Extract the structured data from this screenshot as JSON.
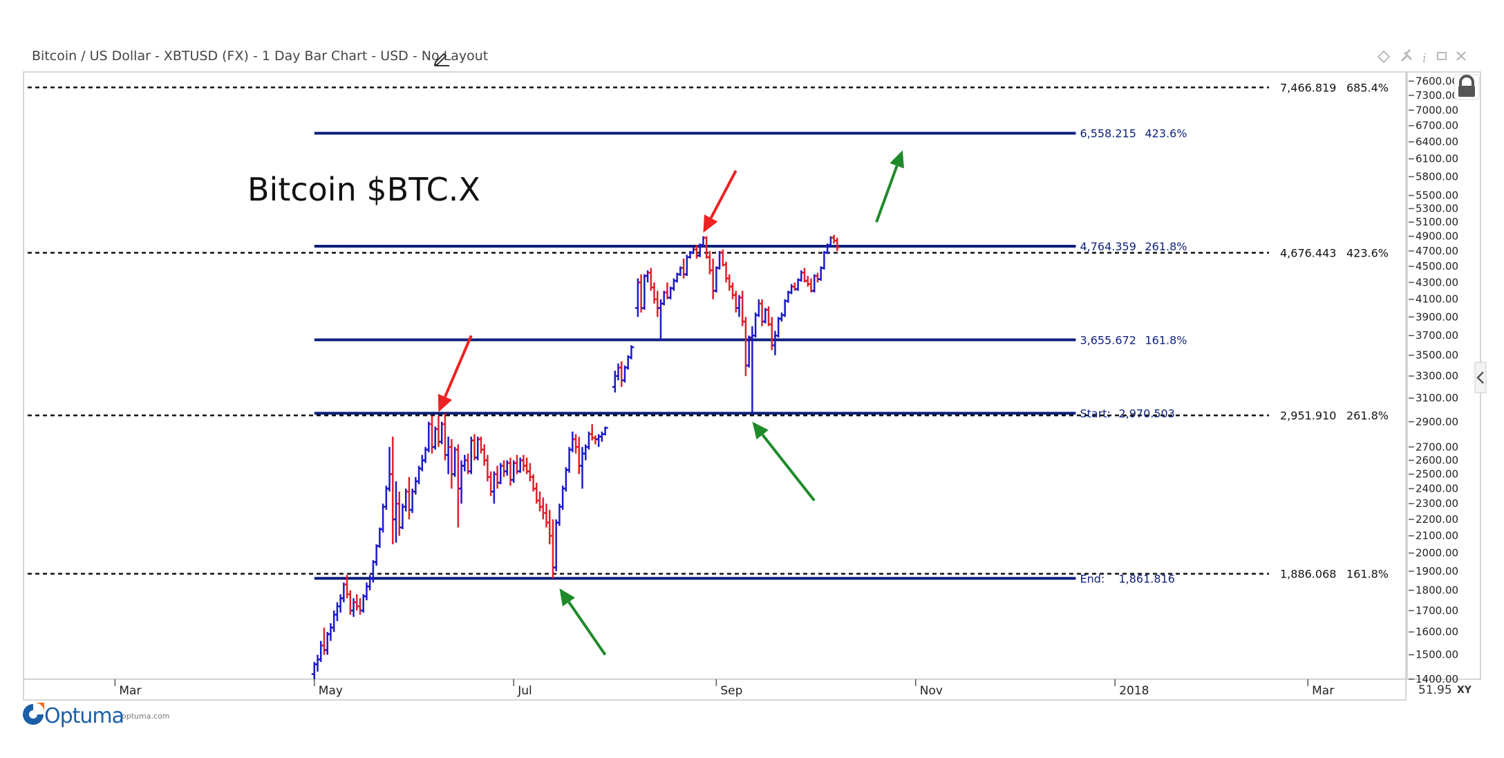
{
  "header": {
    "title": "Bitcoin / US Dollar - XBTUSD (FX) - 1 Day Bar Chart - USD - No Layout"
  },
  "brand": {
    "name": "Optuma",
    "url": "optuma.com"
  },
  "corner": {
    "value": "51.95",
    "xy": "XY"
  },
  "colors": {
    "up_bar": "#1a1acc",
    "down_bar": "#e0202a",
    "fib_line": "#0d1f7a",
    "dotted_line": "#111111",
    "arrow_red": "#ee2222",
    "arrow_green": "#1f8a2a"
  },
  "chart_data": {
    "type": "bar",
    "annotation_title": "Bitcoin $BTC.X",
    "x_axis": {
      "tick_labels": [
        "Mar",
        "May",
        "Jul",
        "Sep",
        "Nov",
        "2018",
        "Mar"
      ],
      "tick_dates": [
        "2017-03-01",
        "2017-05-01",
        "2017-07-01",
        "2017-09-01",
        "2017-11-01",
        "2018-01-01",
        "2018-03-01"
      ],
      "range": [
        "2017-02-01",
        "2018-03-31"
      ]
    },
    "y_axis": {
      "scale": "log",
      "range": [
        1400,
        7800
      ],
      "tick_labels": [
        "7600.00",
        "7300.00",
        "7000.00",
        "6700.00",
        "6400.00",
        "6100.00",
        "5800.00",
        "5500.00",
        "5300.00",
        "5100.00",
        "4900.00",
        "4700.00",
        "4500.00",
        "4300.00",
        "4100.00",
        "3900.00",
        "3700.00",
        "3500.00",
        "3300.00",
        "3100.00",
        "2900.00",
        "2700.00",
        "2600.00",
        "2500.00",
        "2400.00",
        "2300.00",
        "2200.00",
        "2100.00",
        "2000.00",
        "1900.00",
        "1800.00",
        "1700.00",
        "1600.00",
        "1500.00",
        "1400.00"
      ]
    },
    "dotted_levels": [
      {
        "value": 7466.819,
        "label": "7,466.819",
        "pct": "685.4%"
      },
      {
        "value": 4676.443,
        "label": "4,676.443",
        "pct": "423.6%"
      },
      {
        "value": 2951.91,
        "label": "2,951.910",
        "pct": "261.8%"
      },
      {
        "value": 1886.068,
        "label": "1,886.068",
        "pct": "161.8%"
      }
    ],
    "fib_levels": [
      {
        "value": 6558.215,
        "label": "6,558.215",
        "pct": "423.6%"
      },
      {
        "value": 4764.359,
        "label": "4,764.359",
        "pct": "261.8%"
      },
      {
        "value": 3655.672,
        "label": "3,655.672",
        "pct": "161.8%"
      },
      {
        "value": 2970.503,
        "label": "2,970.503",
        "pct": "Start:"
      },
      {
        "value": 1861.816,
        "label": "1,861.816",
        "pct": "End:"
      }
    ],
    "fib_range": [
      "2017-05-01",
      "2017-12-20"
    ],
    "ohlc": [
      [
        "2017-05-01",
        1420,
        1470,
        1400,
        1460
      ],
      [
        "2017-05-02",
        1460,
        1500,
        1430,
        1480
      ],
      [
        "2017-05-03",
        1480,
        1560,
        1470,
        1540
      ],
      [
        "2017-05-04",
        1540,
        1620,
        1500,
        1520
      ],
      [
        "2017-05-05",
        1520,
        1600,
        1500,
        1590
      ],
      [
        "2017-05-06",
        1590,
        1640,
        1560,
        1620
      ],
      [
        "2017-05-07",
        1620,
        1700,
        1600,
        1680
      ],
      [
        "2017-05-08",
        1680,
        1740,
        1650,
        1720
      ],
      [
        "2017-05-09",
        1720,
        1780,
        1690,
        1760
      ],
      [
        "2017-05-10",
        1760,
        1840,
        1740,
        1830
      ],
      [
        "2017-05-11",
        1830,
        1880,
        1760,
        1780
      ],
      [
        "2017-05-12",
        1780,
        1800,
        1680,
        1700
      ],
      [
        "2017-05-13",
        1700,
        1760,
        1670,
        1740
      ],
      [
        "2017-05-14",
        1740,
        1780,
        1700,
        1720
      ],
      [
        "2017-05-15",
        1720,
        1760,
        1680,
        1700
      ],
      [
        "2017-05-16",
        1700,
        1780,
        1690,
        1770
      ],
      [
        "2017-05-17",
        1770,
        1840,
        1750,
        1820
      ],
      [
        "2017-05-18",
        1820,
        1880,
        1800,
        1860
      ],
      [
        "2017-05-19",
        1860,
        1960,
        1840,
        1950
      ],
      [
        "2017-05-20",
        1950,
        2050,
        1930,
        2040
      ],
      [
        "2017-05-21",
        2040,
        2150,
        2030,
        2140
      ],
      [
        "2017-05-22",
        2140,
        2300,
        2120,
        2280
      ],
      [
        "2017-05-23",
        2280,
        2420,
        2260,
        2400
      ],
      [
        "2017-05-24",
        2400,
        2700,
        2380,
        2500
      ],
      [
        "2017-05-25",
        2500,
        2780,
        2050,
        2200
      ],
      [
        "2017-05-26",
        2200,
        2450,
        2060,
        2300
      ],
      [
        "2017-05-27",
        2300,
        2380,
        2100,
        2150
      ],
      [
        "2017-05-28",
        2150,
        2300,
        2140,
        2280
      ],
      [
        "2017-05-29",
        2280,
        2400,
        2250,
        2380
      ],
      [
        "2017-05-30",
        2380,
        2480,
        2200,
        2260
      ],
      [
        "2017-05-31",
        2260,
        2400,
        2240,
        2380
      ],
      [
        "2017-06-01",
        2380,
        2480,
        2360,
        2450
      ],
      [
        "2017-06-02",
        2450,
        2560,
        2430,
        2540
      ],
      [
        "2017-06-03",
        2540,
        2640,
        2520,
        2600
      ],
      [
        "2017-06-04",
        2600,
        2700,
        2580,
        2680
      ],
      [
        "2017-06-05",
        2680,
        2900,
        2660,
        2880
      ],
      [
        "2017-06-06",
        2880,
        2950,
        2650,
        2700
      ],
      [
        "2017-06-07",
        2700,
        2860,
        2680,
        2840
      ],
      [
        "2017-06-08",
        2840,
        2950,
        2700,
        2740
      ],
      [
        "2017-06-09",
        2740,
        2900,
        2720,
        2880
      ],
      [
        "2017-06-10",
        2880,
        2970,
        2600,
        2640
      ],
      [
        "2017-06-11",
        2640,
        2780,
        2500,
        2700
      ],
      [
        "2017-06-12",
        2700,
        2760,
        2400,
        2500
      ],
      [
        "2017-06-13",
        2500,
        2700,
        2480,
        2680
      ],
      [
        "2017-06-14",
        2680,
        2720,
        2150,
        2400
      ],
      [
        "2017-06-15",
        2400,
        2600,
        2300,
        2560
      ],
      [
        "2017-06-16",
        2560,
        2640,
        2520,
        2600
      ],
      [
        "2017-06-17",
        2600,
        2650,
        2500,
        2520
      ],
      [
        "2017-06-18",
        2520,
        2780,
        2500,
        2750
      ],
      [
        "2017-06-19",
        2750,
        2800,
        2600,
        2620
      ],
      [
        "2017-06-20",
        2620,
        2780,
        2600,
        2760
      ],
      [
        "2017-06-21",
        2760,
        2780,
        2650,
        2680
      ],
      [
        "2017-06-22",
        2680,
        2720,
        2560,
        2600
      ],
      [
        "2017-06-23",
        2600,
        2640,
        2450,
        2480
      ],
      [
        "2017-06-24",
        2480,
        2520,
        2350,
        2380
      ],
      [
        "2017-06-25",
        2380,
        2520,
        2300,
        2500
      ],
      [
        "2017-06-26",
        2500,
        2560,
        2400,
        2440
      ],
      [
        "2017-06-27",
        2440,
        2580,
        2430,
        2560
      ],
      [
        "2017-06-28",
        2560,
        2600,
        2480,
        2520
      ],
      [
        "2017-06-29",
        2520,
        2600,
        2490,
        2580
      ],
      [
        "2017-06-30",
        2580,
        2620,
        2420,
        2460
      ],
      [
        "2017-07-01",
        2460,
        2600,
        2440,
        2580
      ],
      [
        "2017-07-02",
        2580,
        2640,
        2500,
        2520
      ],
      [
        "2017-07-03",
        2520,
        2620,
        2510,
        2600
      ],
      [
        "2017-07-04",
        2600,
        2640,
        2520,
        2560
      ],
      [
        "2017-07-05",
        2560,
        2620,
        2500,
        2520
      ],
      [
        "2017-07-06",
        2520,
        2580,
        2450,
        2480
      ],
      [
        "2017-07-07",
        2480,
        2500,
        2380,
        2400
      ],
      [
        "2017-07-08",
        2400,
        2440,
        2300,
        2320
      ],
      [
        "2017-07-09",
        2320,
        2380,
        2250,
        2280
      ],
      [
        "2017-07-10",
        2280,
        2340,
        2200,
        2240
      ],
      [
        "2017-07-11",
        2240,
        2300,
        2150,
        2180
      ],
      [
        "2017-07-12",
        2180,
        2260,
        2050,
        2100
      ],
      [
        "2017-07-13",
        2100,
        2200,
        1862,
        1920
      ],
      [
        "2017-07-14",
        1920,
        2200,
        1900,
        2180
      ],
      [
        "2017-07-15",
        2180,
        2300,
        2160,
        2280
      ],
      [
        "2017-07-16",
        2280,
        2420,
        2260,
        2400
      ],
      [
        "2017-07-17",
        2400,
        2550,
        2380,
        2530
      ],
      [
        "2017-07-18",
        2530,
        2700,
        2510,
        2680
      ],
      [
        "2017-07-19",
        2680,
        2820,
        2660,
        2760
      ],
      [
        "2017-07-20",
        2760,
        2800,
        2650,
        2700
      ],
      [
        "2017-07-21",
        2700,
        2780,
        2500,
        2560
      ],
      [
        "2017-07-22",
        2560,
        2700,
        2400,
        2650
      ],
      [
        "2017-07-23",
        2650,
        2720,
        2600,
        2700
      ],
      [
        "2017-07-24",
        2700,
        2820,
        2680,
        2800
      ],
      [
        "2017-07-25",
        2800,
        2880,
        2750,
        2770
      ],
      [
        "2017-07-26",
        2770,
        2790,
        2720,
        2760
      ],
      [
        "2017-07-27",
        2760,
        2800,
        2700,
        2780
      ],
      [
        "2017-07-28",
        2780,
        2820,
        2740,
        2800
      ],
      [
        "2017-07-29",
        2800,
        2860,
        2790,
        2850
      ],
      [
        "2017-08-01",
        3200,
        3350,
        3150,
        3300
      ],
      [
        "2017-08-02",
        3300,
        3420,
        3260,
        3380
      ],
      [
        "2017-08-03",
        3380,
        3440,
        3200,
        3260
      ],
      [
        "2017-08-04",
        3260,
        3400,
        3240,
        3380
      ],
      [
        "2017-08-05",
        3380,
        3500,
        3360,
        3480
      ],
      [
        "2017-08-06",
        3480,
        3600,
        3460,
        3580
      ],
      [
        "2017-08-08",
        4000,
        4350,
        3900,
        4300
      ],
      [
        "2017-08-09",
        4300,
        4400,
        3950,
        4000
      ],
      [
        "2017-08-10",
        4000,
        4400,
        3980,
        4380
      ],
      [
        "2017-08-11",
        4380,
        4450,
        4300,
        4420
      ],
      [
        "2017-08-12",
        4420,
        4480,
        4200,
        4240
      ],
      [
        "2017-08-13",
        4240,
        4300,
        4050,
        4100
      ],
      [
        "2017-08-14",
        4100,
        4200,
        3900,
        4000
      ],
      [
        "2017-08-15",
        4000,
        4100,
        3650,
        4050
      ],
      [
        "2017-08-16",
        4050,
        4200,
        4030,
        4180
      ],
      [
        "2017-08-17",
        4180,
        4300,
        4100,
        4120
      ],
      [
        "2017-08-18",
        4120,
        4250,
        4100,
        4230
      ],
      [
        "2017-08-19",
        4230,
        4350,
        4200,
        4320
      ],
      [
        "2017-08-20",
        4320,
        4420,
        4300,
        4400
      ],
      [
        "2017-08-21",
        4400,
        4500,
        4380,
        4480
      ],
      [
        "2017-08-22",
        4480,
        4600,
        4350,
        4400
      ],
      [
        "2017-08-23",
        4400,
        4650,
        4380,
        4620
      ],
      [
        "2017-08-24",
        4620,
        4700,
        4600,
        4680
      ],
      [
        "2017-08-25",
        4680,
        4750,
        4660,
        4720
      ],
      [
        "2017-08-26",
        4720,
        4780,
        4600,
        4640
      ],
      [
        "2017-08-27",
        4640,
        4800,
        4620,
        4780
      ],
      [
        "2017-08-28",
        4780,
        4900,
        4760,
        4880
      ],
      [
        "2017-08-29",
        4880,
        4900,
        4600,
        4620
      ],
      [
        "2017-08-30",
        4620,
        4700,
        4400,
        4450
      ],
      [
        "2017-08-31",
        4450,
        4600,
        4100,
        4200
      ],
      [
        "2017-09-01",
        4200,
        4500,
        4180,
        4480
      ],
      [
        "2017-09-02",
        4480,
        4700,
        4460,
        4680
      ],
      [
        "2017-09-03",
        4680,
        4720,
        4500,
        4520
      ],
      [
        "2017-09-04",
        4520,
        4560,
        4300,
        4350
      ],
      [
        "2017-09-05",
        4350,
        4400,
        4200,
        4250
      ],
      [
        "2017-09-06",
        4250,
        4300,
        4100,
        4150
      ],
      [
        "2017-09-07",
        4150,
        4200,
        3950,
        4000
      ],
      [
        "2017-09-08",
        4000,
        4150,
        3900,
        4120
      ],
      [
        "2017-09-09",
        4120,
        4200,
        3800,
        3850
      ],
      [
        "2017-09-10",
        3850,
        3900,
        3300,
        3400
      ],
      [
        "2017-09-11",
        3400,
        3700,
        3380,
        3680
      ],
      [
        "2017-09-12",
        3680,
        3800,
        2970,
        3700
      ],
      [
        "2017-09-13",
        3700,
        3950,
        3680,
        3920
      ],
      [
        "2017-09-14",
        3920,
        4100,
        3900,
        4050
      ],
      [
        "2017-09-15",
        4050,
        4100,
        3800,
        3850
      ],
      [
        "2017-09-16",
        3850,
        4000,
        3830,
        3980
      ],
      [
        "2017-09-17",
        3980,
        4020,
        3800,
        3820
      ],
      [
        "2017-09-18",
        3820,
        3900,
        3550,
        3600
      ],
      [
        "2017-09-19",
        3600,
        3750,
        3500,
        3700
      ],
      [
        "2017-09-20",
        3700,
        3900,
        3680,
        3880
      ],
      [
        "2017-09-21",
        3880,
        3950,
        3850,
        3920
      ],
      [
        "2017-09-22",
        3920,
        4100,
        3900,
        4080
      ],
      [
        "2017-09-23",
        4080,
        4200,
        4060,
        4180
      ],
      [
        "2017-09-24",
        4180,
        4280,
        4160,
        4250
      ],
      [
        "2017-09-25",
        4250,
        4300,
        4200,
        4220
      ],
      [
        "2017-09-26",
        4220,
        4350,
        4200,
        4330
      ],
      [
        "2017-09-27",
        4330,
        4450,
        4310,
        4420
      ],
      [
        "2017-09-28",
        4420,
        4480,
        4300,
        4320
      ],
      [
        "2017-09-29",
        4320,
        4380,
        4250,
        4280
      ],
      [
        "2017-09-30",
        4280,
        4350,
        4180,
        4200
      ],
      [
        "2017-10-01",
        4200,
        4400,
        4180,
        4380
      ],
      [
        "2017-10-02",
        4380,
        4420,
        4300,
        4340
      ],
      [
        "2017-10-03",
        4340,
        4500,
        4320,
        4480
      ],
      [
        "2017-10-04",
        4480,
        4700,
        4460,
        4680
      ],
      [
        "2017-10-05",
        4680,
        4800,
        4660,
        4780
      ],
      [
        "2017-10-06",
        4780,
        4900,
        4760,
        4880
      ],
      [
        "2017-10-07",
        4880,
        4920,
        4800,
        4840
      ],
      [
        "2017-10-08",
        4840,
        4880,
        4700,
        4750
      ]
    ],
    "arrows": [
      {
        "color": "red",
        "from": [
          "2017-06-18",
          3700
        ],
        "to": [
          "2017-06-08",
          2980
        ]
      },
      {
        "color": "red",
        "from": [
          "2017-09-07",
          5900
        ],
        "to": [
          "2017-08-28",
          4950
        ]
      },
      {
        "color": "green",
        "from": [
          "2017-07-29",
          1500
        ],
        "to": [
          "2017-07-15",
          1810
        ]
      },
      {
        "color": "green",
        "from": [
          "2017-10-01",
          2320
        ],
        "to": [
          "2017-09-12",
          2900
        ]
      },
      {
        "color": "green",
        "from": [
          "2017-10-20",
          5100
        ],
        "to": [
          "2017-10-28",
          6250
        ]
      }
    ]
  }
}
